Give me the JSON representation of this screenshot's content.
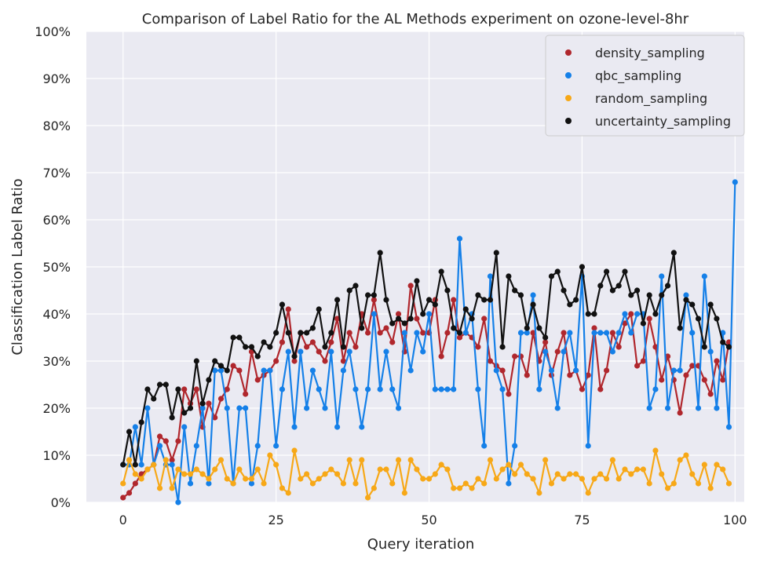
{
  "chart_data": {
    "type": "line",
    "title": "Comparison of Label Ratio for the AL Methods experiment on ozone-level-8hr",
    "xlabel": "Query iteration",
    "ylabel": "Classification Label Ratio",
    "xlim": [
      -6,
      101.5
    ],
    "ylim": [
      0,
      1
    ],
    "xticks": [
      0,
      25,
      50,
      75,
      100
    ],
    "yticks": [
      0,
      0.1,
      0.2,
      0.3,
      0.4,
      0.5,
      0.6,
      0.7,
      0.8,
      0.9,
      1.0
    ],
    "ytick_labels": [
      "0%",
      "10%",
      "20%",
      "30%",
      "40%",
      "50%",
      "60%",
      "70%",
      "80%",
      "90%",
      "100%"
    ],
    "grid": true,
    "legend_position": "top-right",
    "series": [
      {
        "name": "density_sampling",
        "color": "#b0272d",
        "values": [
          0.01,
          0.02,
          0.04,
          0.06,
          0.07,
          0.08,
          0.14,
          0.13,
          0.09,
          0.13,
          0.24,
          0.21,
          0.24,
          0.16,
          0.21,
          0.18,
          0.22,
          0.24,
          0.29,
          0.28,
          0.23,
          0.32,
          0.26,
          0.27,
          0.28,
          0.3,
          0.34,
          0.41,
          0.3,
          0.36,
          0.33,
          0.34,
          0.32,
          0.3,
          0.34,
          0.39,
          0.3,
          0.36,
          0.33,
          0.4,
          0.36,
          0.43,
          0.36,
          0.37,
          0.34,
          0.4,
          0.32,
          0.46,
          0.39,
          0.36,
          0.36,
          0.43,
          0.31,
          0.36,
          0.43,
          0.35,
          0.36,
          0.35,
          0.33,
          0.39,
          0.3,
          0.29,
          0.28,
          0.23,
          0.31,
          0.31,
          0.27,
          0.36,
          0.3,
          0.34,
          0.27,
          0.32,
          0.36,
          0.27,
          0.28,
          0.24,
          0.27,
          0.37,
          0.24,
          0.28,
          0.36,
          0.33,
          0.38,
          0.4,
          0.29,
          0.3,
          0.39,
          0.33,
          0.26,
          0.31,
          0.26,
          0.19,
          0.27,
          0.29,
          0.29,
          0.26,
          0.23,
          0.3,
          0.26,
          0.34
        ]
      },
      {
        "name": "qbc_sampling",
        "color": "#1580e8",
        "values": [
          0.08,
          0.08,
          0.16,
          0.08,
          0.2,
          0.08,
          0.12,
          0.08,
          0.08,
          0.0,
          0.16,
          0.04,
          0.12,
          0.2,
          0.04,
          0.28,
          0.28,
          0.2,
          0.04,
          0.2,
          0.2,
          0.04,
          0.12,
          0.28,
          0.28,
          0.12,
          0.24,
          0.32,
          0.16,
          0.32,
          0.2,
          0.28,
          0.24,
          0.2,
          0.32,
          0.16,
          0.28,
          0.32,
          0.24,
          0.16,
          0.24,
          0.4,
          0.24,
          0.32,
          0.24,
          0.2,
          0.36,
          0.28,
          0.36,
          0.32,
          0.4,
          0.24,
          0.24,
          0.24,
          0.24,
          0.56,
          0.36,
          0.4,
          0.24,
          0.12,
          0.48,
          0.28,
          0.24,
          0.04,
          0.12,
          0.36,
          0.36,
          0.44,
          0.24,
          0.32,
          0.28,
          0.2,
          0.32,
          0.36,
          0.28,
          0.48,
          0.12,
          0.36,
          0.36,
          0.36,
          0.32,
          0.36,
          0.4,
          0.36,
          0.4,
          0.4,
          0.2,
          0.24,
          0.48,
          0.2,
          0.28,
          0.28,
          0.44,
          0.36,
          0.2,
          0.48,
          0.32,
          0.2,
          0.36,
          0.16,
          0.68
        ]
      },
      {
        "name": "random_sampling",
        "color": "#f7a817",
        "values": [
          0.04,
          0.09,
          0.06,
          0.05,
          0.07,
          0.08,
          0.03,
          0.09,
          0.03,
          0.07,
          0.06,
          0.06,
          0.07,
          0.06,
          0.05,
          0.07,
          0.09,
          0.05,
          0.04,
          0.07,
          0.05,
          0.05,
          0.07,
          0.04,
          0.1,
          0.08,
          0.03,
          0.02,
          0.11,
          0.05,
          0.06,
          0.04,
          0.05,
          0.06,
          0.07,
          0.06,
          0.04,
          0.09,
          0.04,
          0.09,
          0.01,
          0.03,
          0.07,
          0.07,
          0.04,
          0.09,
          0.02,
          0.09,
          0.07,
          0.05,
          0.05,
          0.06,
          0.08,
          0.07,
          0.03,
          0.03,
          0.04,
          0.03,
          0.05,
          0.04,
          0.09,
          0.05,
          0.07,
          0.08,
          0.06,
          0.08,
          0.06,
          0.05,
          0.02,
          0.09,
          0.04,
          0.06,
          0.05,
          0.06,
          0.06,
          0.05,
          0.02,
          0.05,
          0.06,
          0.05,
          0.09,
          0.05,
          0.07,
          0.06,
          0.07,
          0.07,
          0.04,
          0.11,
          0.06,
          0.03,
          0.04,
          0.09,
          0.1,
          0.06,
          0.04,
          0.08,
          0.03,
          0.08,
          0.07,
          0.04
        ]
      },
      {
        "name": "uncertainty_sampling",
        "color": "#111111",
        "values": [
          0.08,
          0.15,
          0.08,
          0.17,
          0.24,
          0.22,
          0.25,
          0.25,
          0.18,
          0.24,
          0.19,
          0.2,
          0.3,
          0.21,
          0.26,
          0.3,
          0.29,
          0.28,
          0.35,
          0.35,
          0.33,
          0.33,
          0.31,
          0.34,
          0.33,
          0.36,
          0.42,
          0.36,
          0.31,
          0.36,
          0.36,
          0.37,
          0.41,
          0.33,
          0.36,
          0.43,
          0.33,
          0.45,
          0.46,
          0.37,
          0.44,
          0.44,
          0.53,
          0.43,
          0.38,
          0.39,
          0.38,
          0.39,
          0.47,
          0.4,
          0.43,
          0.42,
          0.49,
          0.45,
          0.37,
          0.36,
          0.41,
          0.39,
          0.44,
          0.43,
          0.43,
          0.53,
          0.33,
          0.48,
          0.45,
          0.44,
          0.37,
          0.42,
          0.37,
          0.35,
          0.48,
          0.49,
          0.45,
          0.42,
          0.43,
          0.5,
          0.4,
          0.4,
          0.46,
          0.49,
          0.45,
          0.46,
          0.49,
          0.44,
          0.45,
          0.38,
          0.44,
          0.4,
          0.44,
          0.46,
          0.53,
          0.37,
          0.43,
          0.42,
          0.39,
          0.33,
          0.42,
          0.39,
          0.34,
          0.33
        ]
      }
    ]
  }
}
